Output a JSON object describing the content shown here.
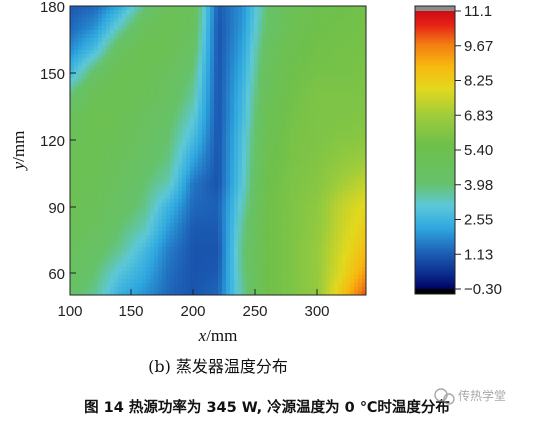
{
  "chart_data": {
    "type": "heatmap",
    "x_axis": {
      "label_var": "x",
      "label_unit": "/mm",
      "range": [
        100,
        340
      ],
      "ticks": [
        "100",
        "150",
        "200",
        "250",
        "300"
      ]
    },
    "y_axis": {
      "label_var": "y",
      "label_unit": "/mm",
      "range": [
        50,
        180
      ],
      "ticks": [
        "60",
        "90",
        "120",
        "150",
        "180"
      ]
    },
    "colorbar": {
      "ticks": [
        "11.1",
        "9.67",
        "8.25",
        "6.83",
        "5.40",
        "3.98",
        "2.55",
        "1.13",
        "−0.30"
      ],
      "min": -0.3,
      "max": 11.1
    },
    "x": [
      100,
      120,
      140,
      160,
      180,
      200,
      220,
      240,
      260,
      280,
      300,
      320,
      340
    ],
    "y": [
      50,
      60,
      70,
      80,
      90,
      100,
      110,
      120,
      130,
      140,
      150,
      160,
      170,
      180
    ],
    "z": [
      [
        4.2,
        3.7,
        2.4,
        1.9,
        1.3,
        1.0,
        1.3,
        3.6,
        5.6,
        6.0,
        6.5,
        8.5,
        10.2
      ],
      [
        4.5,
        4.0,
        3.0,
        2.3,
        1.4,
        1.0,
        1.1,
        3.8,
        5.6,
        6.0,
        6.6,
        7.9,
        9.3
      ],
      [
        4.7,
        4.3,
        3.7,
        2.7,
        1.6,
        1.0,
        1.0,
        3.9,
        5.6,
        6.0,
        6.6,
        7.7,
        8.7
      ],
      [
        5.0,
        4.7,
        4.0,
        3.4,
        2.0,
        1.1,
        1.1,
        3.7,
        5.6,
        6.0,
        6.5,
        7.5,
        8.3
      ],
      [
        5.1,
        4.9,
        4.4,
        3.8,
        2.5,
        1.3,
        1.2,
        3.4,
        5.6,
        6.0,
        6.4,
        7.4,
        8.0
      ],
      [
        5.2,
        5.0,
        4.6,
        4.0,
        3.4,
        1.5,
        1.0,
        3.1,
        5.5,
        6.0,
        6.2,
        6.9,
        7.4
      ],
      [
        5.1,
        5.2,
        4.8,
        4.3,
        3.8,
        2.1,
        1.0,
        3.0,
        5.4,
        5.9,
        6.1,
        6.5,
        6.8
      ],
      [
        4.9,
        5.2,
        5.0,
        4.5,
        4.0,
        2.7,
        1.0,
        2.9,
        5.2,
        5.9,
        6.0,
        6.2,
        6.3
      ],
      [
        4.7,
        5.3,
        5.1,
        4.7,
        4.2,
        3.2,
        1.0,
        2.7,
        5.1,
        5.8,
        6.0,
        6.0,
        6.1
      ],
      [
        3.9,
        5.1,
        5.1,
        5.0,
        4.5,
        3.6,
        1.0,
        2.6,
        4.9,
        5.7,
        6.0,
        6.0,
        6.0
      ],
      [
        2.6,
        4.2,
        5.2,
        5.1,
        4.7,
        3.9,
        1.0,
        2.4,
        4.7,
        5.6,
        5.8,
        5.8,
        5.9
      ],
      [
        1.8,
        2.8,
        4.6,
        5.2,
        5.1,
        4.3,
        1.0,
        2.2,
        4.5,
        5.4,
        5.7,
        5.8,
        5.8
      ],
      [
        1.3,
        1.9,
        3.4,
        4.8,
        5.2,
        4.6,
        1.0,
        2.0,
        4.2,
        5.2,
        5.6,
        5.7,
        5.8
      ],
      [
        1.1,
        1.3,
        2.3,
        3.8,
        5.0,
        4.8,
        1.1,
        1.9,
        4.0,
        5.0,
        5.5,
        5.6,
        5.7
      ]
    ]
  },
  "captions": {
    "subcaption": "(b) 蒸发器温度分布",
    "figure_caption": "图 14 热源功率为 345 W, 冷源温度为 0 ℃时温度分布",
    "watermark": "传热学堂"
  },
  "colors": {
    "over_cap": "#8c8c8c",
    "under_cap": "#000000"
  }
}
